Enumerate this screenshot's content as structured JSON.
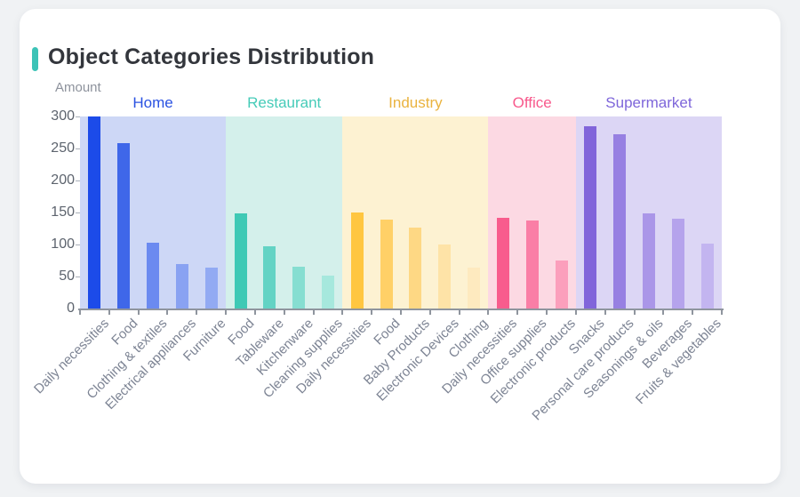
{
  "card": {
    "title": "Object Categories Distribution",
    "accent_color": "#3cc3b7"
  },
  "chart_data": {
    "type": "bar",
    "title": "Object Categories Distribution",
    "xlabel": "",
    "ylabel": "Amount",
    "ylim": [
      0,
      300
    ],
    "yticks": [
      0,
      50,
      100,
      150,
      200,
      250,
      300
    ],
    "grid": false,
    "legend_position": "none",
    "axis_color": "#8f959e",
    "groups": [
      {
        "name": "Home",
        "label_color": "#2a52e2",
        "band_color": "#cdd7f6",
        "categories": [
          "Daily necessities",
          "Food",
          "Clothing & textiles",
          "Electrical appliances",
          "Furniture"
        ],
        "values": [
          300,
          258,
          103,
          70,
          64
        ],
        "bar_colors": [
          "#1c4be9",
          "#3f67e9",
          "#6b8af0",
          "#89a2f2",
          "#92aaf3"
        ]
      },
      {
        "name": "Restaurant",
        "label_color": "#45cbb8",
        "band_color": "#d4f0eb",
        "categories": [
          "Food",
          "Tableware",
          "Kitchenware",
          "Cleaning supplies"
        ],
        "values": [
          148,
          97,
          65,
          51
        ],
        "bar_colors": [
          "#3fc9b5",
          "#63d3c4",
          "#86ded1",
          "#a6e8dd"
        ]
      },
      {
        "name": "Industry",
        "label_color": "#eab33f",
        "band_color": "#fdf2d2",
        "categories": [
          "Daily necessities",
          "Food",
          "Baby Products",
          "Electronic Devices",
          "Clothing"
        ],
        "values": [
          150,
          139,
          126,
          100,
          64
        ],
        "bar_colors": [
          "#ffc640",
          "#ffd067",
          "#fed884",
          "#fee3a7",
          "#feeabf"
        ]
      },
      {
        "name": "Office",
        "label_color": "#f8598c",
        "band_color": "#fcd9e3",
        "categories": [
          "Daily necessities",
          "Office supplies",
          "Electronic products"
        ],
        "values": [
          142,
          138,
          75
        ],
        "bar_colors": [
          "#f85c8d",
          "#fa7ea6",
          "#fb9fbc"
        ]
      },
      {
        "name": "Supermarket",
        "label_color": "#7e66da",
        "band_color": "#dcd6f5",
        "categories": [
          "Snacks",
          "Personal care products",
          "Seasonings & oils",
          "Beverages",
          "Fruits & vegetables"
        ],
        "values": [
          285,
          272,
          148,
          140,
          102
        ],
        "bar_colors": [
          "#8165da",
          "#9780e2",
          "#aa96e8",
          "#b5a3ec",
          "#c3b5f0"
        ]
      }
    ]
  }
}
